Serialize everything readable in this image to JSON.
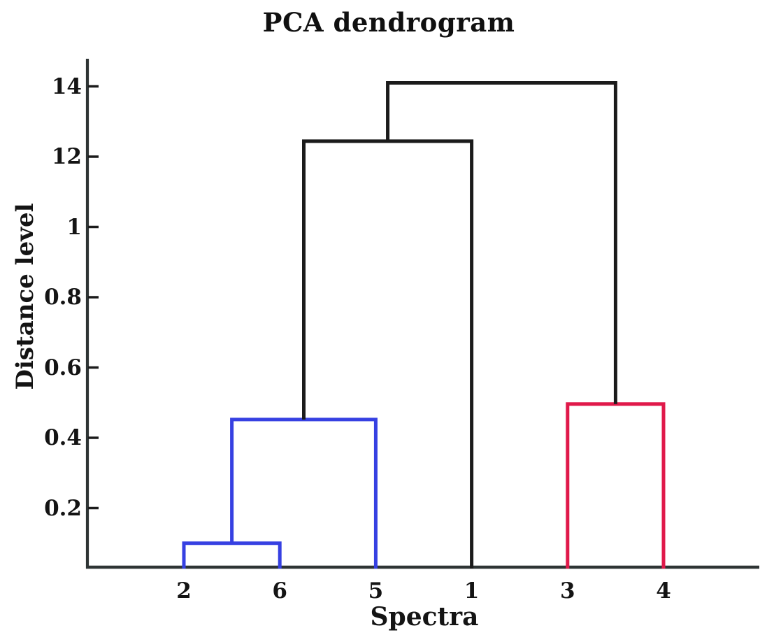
{
  "chart_data": {
    "type": "dendrogram",
    "title": "PCA dendrogram",
    "xlabel": "Spectra",
    "ylabel": "Distance level",
    "leaves": [
      "2",
      "6",
      "5",
      "1",
      "3",
      "4"
    ],
    "y_axis": {
      "ticks": [
        {
          "label": "0.2",
          "steps": 1
        },
        {
          "label": "0.4",
          "steps": 2
        },
        {
          "label": "0.6",
          "steps": 3
        },
        {
          "label": "0.8",
          "steps": 4
        },
        {
          "label": "1",
          "steps": 5
        },
        {
          "label": "12",
          "steps": 6
        },
        {
          "label": "14",
          "steps": 7
        }
      ],
      "baseline_value": 0,
      "grid": false
    },
    "merges": [
      {
        "id": "A",
        "left": "leaf:2",
        "right": "leaf:6",
        "height_steps": 0.5,
        "height_axis_value": 0.1,
        "color_key": "blue"
      },
      {
        "id": "B",
        "left": "node:A",
        "right": "leaf:5",
        "height_steps": 2.26,
        "height_axis_value": 0.45,
        "color_key": "blue"
      },
      {
        "id": "D",
        "left": "leaf:3",
        "right": "leaf:4",
        "height_steps": 2.48,
        "height_axis_value": 0.5,
        "color_key": "red"
      },
      {
        "id": "C",
        "left": "node:B",
        "right": "leaf:1",
        "height_steps": 6.22,
        "height_axis_value": 12.4,
        "color_key": "black"
      },
      {
        "id": "R",
        "left": "node:C",
        "right": "node:D",
        "height_steps": 7.05,
        "height_axis_value": 14.1,
        "color_key": "black"
      }
    ],
    "colors": {
      "blue": "#3640e2",
      "red": "#e0194a",
      "black": "#1b1b1b",
      "axis": "#2e3434"
    }
  }
}
